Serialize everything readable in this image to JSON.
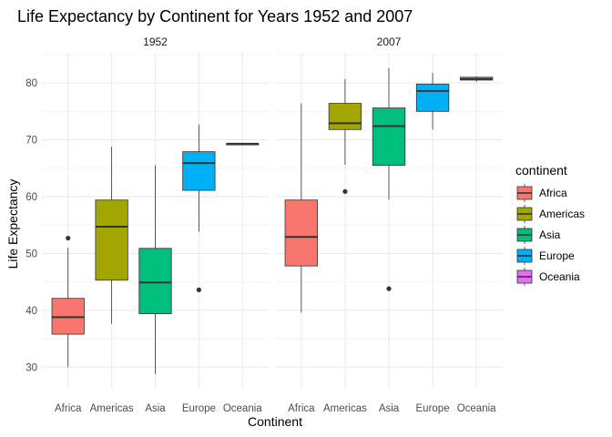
{
  "chart_data": {
    "type": "boxplot",
    "title": "Life Expectancy by Continent for Years 1952 and 2007",
    "xlabel": "Continent",
    "ylabel": "Life Expectancy",
    "ylim": [
      26.2,
      85.3
    ],
    "yticks": [
      30,
      40,
      50,
      60,
      70,
      80
    ],
    "grid": true,
    "legend_position": "right",
    "legend_title": "continent",
    "categories": [
      "Africa",
      "Americas",
      "Asia",
      "Europe",
      "Oceania"
    ],
    "colors": {
      "Africa": "#F8766D",
      "Americas": "#A3A500",
      "Asia": "#00BF7D",
      "Europe": "#00B0F6",
      "Oceania": "#E76BF3"
    },
    "facets": [
      {
        "label": "1952",
        "boxes": [
          {
            "category": "Africa",
            "min": 30.0,
            "q1": 35.8,
            "median": 38.8,
            "q3": 42.1,
            "max": 51.0,
            "outliers": [
              52.7
            ]
          },
          {
            "category": "Americas",
            "min": 37.6,
            "q1": 45.3,
            "median": 54.7,
            "q3": 59.4,
            "max": 68.8,
            "outliers": []
          },
          {
            "category": "Asia",
            "min": 28.8,
            "q1": 39.4,
            "median": 44.9,
            "q3": 50.9,
            "max": 65.5,
            "outliers": []
          },
          {
            "category": "Europe",
            "min": 53.8,
            "q1": 61.1,
            "median": 65.9,
            "q3": 67.9,
            "max": 72.7,
            "outliers": [
              43.6
            ]
          },
          {
            "category": "Oceania",
            "min": 69.1,
            "q1": 69.1,
            "median": 69.3,
            "q3": 69.3,
            "max": 69.4,
            "outliers": []
          }
        ]
      },
      {
        "label": "2007",
        "boxes": [
          {
            "category": "Africa",
            "min": 39.6,
            "q1": 47.8,
            "median": 52.9,
            "q3": 59.4,
            "max": 76.4,
            "outliers": []
          },
          {
            "category": "Americas",
            "min": 65.6,
            "q1": 71.8,
            "median": 72.9,
            "q3": 76.4,
            "max": 80.7,
            "outliers": [
              60.9
            ]
          },
          {
            "category": "Asia",
            "min": 59.5,
            "q1": 65.5,
            "median": 72.4,
            "q3": 75.6,
            "max": 82.6,
            "outliers": [
              43.8
            ]
          },
          {
            "category": "Europe",
            "min": 71.8,
            "q1": 75.0,
            "median": 78.6,
            "q3": 79.8,
            "max": 81.8,
            "outliers": []
          },
          {
            "category": "Oceania",
            "min": 80.2,
            "q1": 80.5,
            "median": 80.7,
            "q3": 81.0,
            "max": 81.2,
            "outliers": []
          }
        ]
      }
    ]
  }
}
